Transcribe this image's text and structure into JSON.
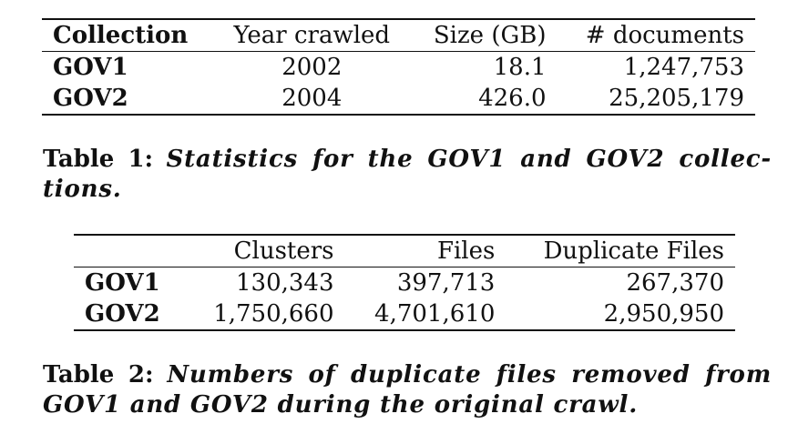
{
  "table1": {
    "headers": [
      "Collection",
      "Year crawled",
      "Size (GB)",
      "# documents"
    ],
    "rows": [
      {
        "name": "GOV1",
        "year": "2002",
        "size": "18.1",
        "docs": "1,247,753"
      },
      {
        "name": "GOV2",
        "year": "2004",
        "size": "426.0",
        "docs": "25,205,179"
      }
    ],
    "caption_label": "Table 1:",
    "caption_text": "Statistics for the GOV1 and GOV2 collec-tions."
  },
  "table2": {
    "headers": [
      "",
      "Clusters",
      "Files",
      "Duplicate Files"
    ],
    "rows": [
      {
        "name": "GOV1",
        "clusters": "130,343",
        "files": "397,713",
        "dups": "267,370"
      },
      {
        "name": "GOV2",
        "clusters": "1,750,660",
        "files": "4,701,610",
        "dups": "2,950,950"
      }
    ],
    "caption_label": "Table 2:",
    "caption_text": "Numbers of duplicate files removed from GOV1 and GOV2 during the original crawl."
  }
}
